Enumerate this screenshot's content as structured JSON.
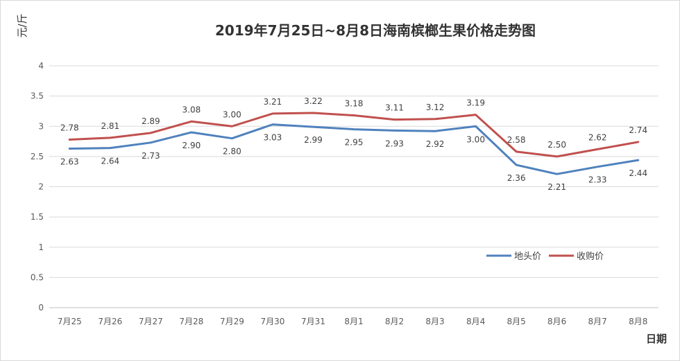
{
  "chart_data": {
    "type": "line",
    "title": "2019年7月25日~8月8日海南槟榔生果价格走势图",
    "ylabel": "元/斤",
    "xlabel": "日期",
    "categories": [
      "7月25",
      "7月26",
      "7月27",
      "7月28",
      "7月29",
      "7月30",
      "7月31",
      "8月1",
      "8月2",
      "8月3",
      "8月4",
      "8月5",
      "8月6",
      "8月7",
      "8月8"
    ],
    "y_ticks": [
      "0",
      "0.5",
      "1",
      "1.5",
      "2",
      "2.5",
      "3",
      "3.5",
      "4"
    ],
    "ylim": [
      0,
      4
    ],
    "grid": true,
    "legend_position": "right",
    "series": [
      {
        "name": "地头价",
        "color": "#4f81bd",
        "values": [
          2.63,
          2.64,
          2.73,
          2.9,
          2.8,
          3.03,
          2.99,
          2.95,
          2.93,
          2.92,
          3.0,
          2.36,
          2.21,
          2.33,
          2.44
        ],
        "labels": [
          "2.63",
          "2.64",
          "2.73",
          "2.90",
          "2.80",
          "3.03",
          "2.99",
          "2.95",
          "2.93",
          "2.92",
          "3.00",
          "2.36",
          "2.21",
          "2.33",
          "2.44"
        ],
        "label_position": "below"
      },
      {
        "name": "收购价",
        "color": "#c0504d",
        "values": [
          2.78,
          2.81,
          2.89,
          3.08,
          3.0,
          3.21,
          3.22,
          3.18,
          3.11,
          3.12,
          3.19,
          2.58,
          2.5,
          2.62,
          2.74
        ],
        "labels": [
          "2.78",
          "2.81",
          "2.89",
          "3.08",
          "3.00",
          "3.21",
          "3.22",
          "3.18",
          "3.11",
          "3.12",
          "3.19",
          "2.58",
          "2.50",
          "2.62",
          "2.74"
        ],
        "label_position": "above"
      }
    ]
  }
}
